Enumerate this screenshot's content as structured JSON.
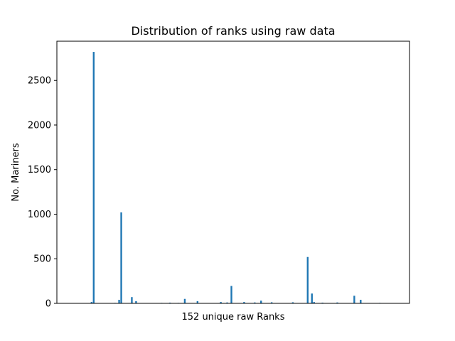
{
  "chart_data": {
    "type": "bar",
    "title": "Distribution of ranks using raw data",
    "xlabel": "152 unique raw Ranks",
    "ylabel": "No. Mariners",
    "ylim": [
      0,
      2940
    ],
    "yticks": [
      0,
      500,
      1000,
      1500,
      2000,
      2500
    ],
    "x_tick_labels_visible": false,
    "bar_color": "#1f77b4",
    "category_count": 152,
    "values": [
      0,
      0,
      0,
      0,
      0,
      0,
      0,
      0,
      0,
      15,
      2820,
      0,
      0,
      0,
      0,
      0,
      0,
      0,
      0,
      0,
      5,
      0,
      40,
      1020,
      0,
      0,
      0,
      0,
      70,
      0,
      25,
      0,
      0,
      0,
      0,
      0,
      0,
      0,
      0,
      0,
      0,
      0,
      5,
      0,
      0,
      0,
      8,
      0,
      0,
      0,
      5,
      0,
      0,
      50,
      0,
      0,
      0,
      0,
      0,
      25,
      0,
      0,
      0,
      0,
      0,
      0,
      0,
      0,
      0,
      0,
      15,
      0,
      0,
      10,
      0,
      195,
      0,
      0,
      0,
      0,
      0,
      15,
      0,
      0,
      0,
      0,
      10,
      0,
      0,
      30,
      0,
      0,
      0,
      0,
      12,
      0,
      0,
      0,
      0,
      0,
      0,
      0,
      0,
      0,
      12,
      0,
      0,
      0,
      0,
      0,
      0,
      520,
      0,
      110,
      15,
      0,
      0,
      0,
      8,
      0,
      0,
      0,
      0,
      0,
      0,
      10,
      0,
      0,
      0,
      0,
      0,
      0,
      0,
      85,
      0,
      0,
      40,
      0,
      0,
      0,
      0,
      0,
      0,
      0,
      0,
      5,
      0,
      0,
      0,
      0,
      0,
      0
    ]
  }
}
